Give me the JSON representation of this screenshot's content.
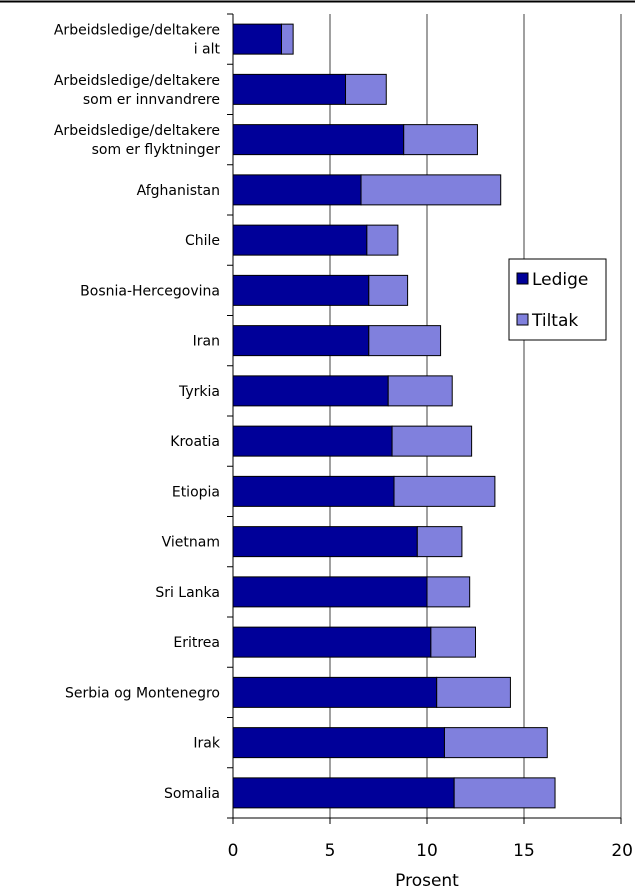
{
  "chart_data": {
    "type": "bar",
    "orientation": "horizontal",
    "stacked": true,
    "categories": [
      [
        "Arbeidsledige/deltakere",
        "i alt"
      ],
      [
        "Arbeidsledige/deltakere",
        "som er innvandrere"
      ],
      [
        "Arbeidsledige/deltakere",
        "som er flyktninger"
      ],
      [
        "Afghanistan"
      ],
      [
        "Chile"
      ],
      [
        "Bosnia-Hercegovina"
      ],
      [
        "Iran"
      ],
      [
        "Tyrkia"
      ],
      [
        "Kroatia"
      ],
      [
        "Etiopia"
      ],
      [
        "Vietnam"
      ],
      [
        "Sri Lanka"
      ],
      [
        "Eritrea"
      ],
      [
        "Serbia og Montenegro"
      ],
      [
        "Irak"
      ],
      [
        "Somalia"
      ]
    ],
    "series": [
      {
        "name": "Ledige",
        "color": "#000099",
        "values": [
          2.5,
          5.8,
          8.8,
          6.6,
          6.9,
          7.0,
          7.0,
          8.0,
          8.2,
          8.3,
          9.5,
          10.0,
          10.2,
          10.5,
          10.9,
          11.4
        ]
      },
      {
        "name": "Tiltak",
        "color": "#8080dd",
        "values": [
          0.6,
          2.1,
          3.8,
          7.2,
          1.6,
          2.0,
          3.7,
          3.3,
          4.1,
          5.2,
          2.3,
          2.2,
          2.3,
          3.8,
          5.3,
          5.2
        ]
      }
    ],
    "xlim": [
      0,
      20
    ],
    "xticks": [
      0,
      5,
      10,
      15,
      20
    ],
    "xlabel": "Prosent",
    "ylabel": "",
    "title": "",
    "grid": "vertical",
    "legend_position": "right"
  }
}
